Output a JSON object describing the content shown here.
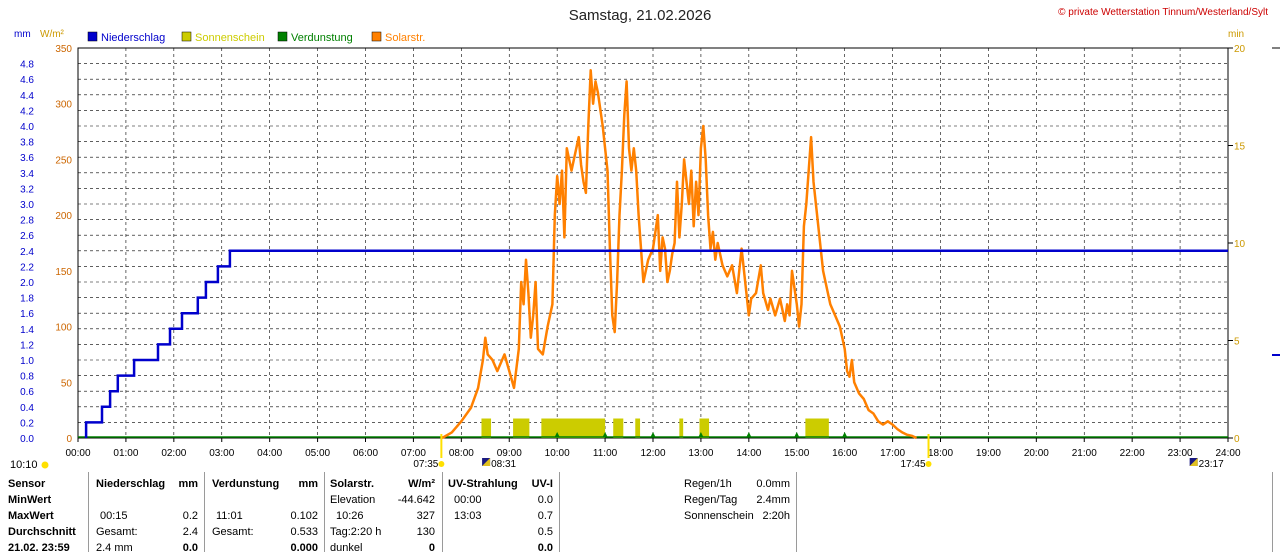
{
  "chart_data": {
    "type": "line",
    "title": "Samstag, 21.02.2026",
    "copyright": "© private Wetterstation Tinnum/Westerland/Sylt",
    "left_units": [
      "mm",
      "W/m²"
    ],
    "right_unit": "min",
    "legend": [
      {
        "name": "Niederschlag",
        "color": "#0000cc",
        "text_color": "#0000cc"
      },
      {
        "name": "Sonnenschein",
        "color": "#cccc00",
        "text_color": "#cccc00"
      },
      {
        "name": "Verdunstung",
        "color": "#008000",
        "text_color": "#008000"
      },
      {
        "name": "Solarstr.",
        "color": "#ff8000",
        "text_color": "#ff8000"
      }
    ],
    "x_ticks": [
      "00:00",
      "01:00",
      "02:00",
      "03:00",
      "04:00",
      "05:00",
      "06:00",
      "07:00",
      "08:00",
      "09:00",
      "10:00",
      "11:00",
      "12:00",
      "13:00",
      "14:00",
      "15:00",
      "16:00",
      "17:00",
      "18:00",
      "19:00",
      "20:00",
      "21:00",
      "22:00",
      "23:00",
      "24:00"
    ],
    "xlim_hours": [
      0,
      24
    ],
    "y_left_mm_ticks": [
      "0.0",
      "0.2",
      "0.4",
      "0.6",
      "0.8",
      "1.0",
      "1.2",
      "1.4",
      "1.6",
      "1.8",
      "2.0",
      "2.2",
      "2.4",
      "2.6",
      "2.8",
      "3.0",
      "3.2",
      "3.4",
      "3.6",
      "3.8",
      "4.0",
      "4.2",
      "4.4",
      "4.6",
      "4.8"
    ],
    "ylim_mm": [
      0,
      5.0
    ],
    "y_left_wm2_ticks": [
      "0",
      "50",
      "100",
      "150",
      "200",
      "250",
      "300",
      "350"
    ],
    "ylim_wm2": [
      0,
      350
    ],
    "y_right_min_ticks": [
      "0",
      "5",
      "10",
      "15",
      "20"
    ],
    "ylim_min": [
      0,
      20
    ],
    "grid": true,
    "sun_markers": [
      {
        "label": "07:35",
        "hour": 7.5833
      },
      {
        "label": "17:45",
        "hour": 17.75
      }
    ],
    "moon_markers": [
      {
        "label": "08:31",
        "hour": 8.5167
      },
      {
        "label": "23:17",
        "hour": 23.2833
      }
    ],
    "corner_time": "10:10",
    "series": [
      {
        "name": "Niederschlag",
        "unit": "mm",
        "color": "#0000cc",
        "points": [
          [
            0.17,
            0
          ],
          [
            0.17,
            0.2
          ],
          [
            0.5,
            0.2
          ],
          [
            0.5,
            0.4
          ],
          [
            0.67,
            0.4
          ],
          [
            0.67,
            0.6
          ],
          [
            0.83,
            0.6
          ],
          [
            0.83,
            0.8
          ],
          [
            1.17,
            0.8
          ],
          [
            1.17,
            1.0
          ],
          [
            1.67,
            1.0
          ],
          [
            1.67,
            1.2
          ],
          [
            1.92,
            1.2
          ],
          [
            1.92,
            1.4
          ],
          [
            2.17,
            1.4
          ],
          [
            2.17,
            1.6
          ],
          [
            2.5,
            1.6
          ],
          [
            2.5,
            1.8
          ],
          [
            2.67,
            1.8
          ],
          [
            2.67,
            2.0
          ],
          [
            2.92,
            2.0
          ],
          [
            2.92,
            2.2
          ],
          [
            3.17,
            2.2
          ],
          [
            3.17,
            2.4
          ],
          [
            24,
            2.4
          ]
        ]
      },
      {
        "name": "Solarstr.",
        "unit": "W/m²",
        "color": "#ff8000",
        "points": [
          [
            7.6,
            0
          ],
          [
            7.8,
            5
          ],
          [
            8.0,
            15
          ],
          [
            8.2,
            27
          ],
          [
            8.35,
            45
          ],
          [
            8.45,
            70
          ],
          [
            8.5,
            90
          ],
          [
            8.55,
            75
          ],
          [
            8.65,
            70
          ],
          [
            8.75,
            60
          ],
          [
            8.9,
            75
          ],
          [
            9.0,
            60
          ],
          [
            9.1,
            45
          ],
          [
            9.2,
            80
          ],
          [
            9.25,
            140
          ],
          [
            9.3,
            120
          ],
          [
            9.35,
            160
          ],
          [
            9.4,
            130
          ],
          [
            9.45,
            90
          ],
          [
            9.5,
            110
          ],
          [
            9.55,
            140
          ],
          [
            9.6,
            80
          ],
          [
            9.7,
            75
          ],
          [
            9.8,
            100
          ],
          [
            9.9,
            120
          ],
          [
            9.95,
            200
          ],
          [
            10.0,
            235
          ],
          [
            10.05,
            210
          ],
          [
            10.1,
            240
          ],
          [
            10.15,
            180
          ],
          [
            10.2,
            260
          ],
          [
            10.3,
            240
          ],
          [
            10.35,
            250
          ],
          [
            10.45,
            270
          ],
          [
            10.5,
            245
          ],
          [
            10.55,
            230
          ],
          [
            10.6,
            220
          ],
          [
            10.65,
            280
          ],
          [
            10.7,
            330
          ],
          [
            10.75,
            300
          ],
          [
            10.8,
            320
          ],
          [
            10.85,
            310
          ],
          [
            10.95,
            280
          ],
          [
            11.0,
            260
          ],
          [
            11.05,
            240
          ],
          [
            11.1,
            170
          ],
          [
            11.15,
            110
          ],
          [
            11.2,
            95
          ],
          [
            11.25,
            140
          ],
          [
            11.3,
            200
          ],
          [
            11.35,
            240
          ],
          [
            11.4,
            290
          ],
          [
            11.45,
            320
          ],
          [
            11.5,
            260
          ],
          [
            11.55,
            240
          ],
          [
            11.6,
            260
          ],
          [
            11.65,
            240
          ],
          [
            11.7,
            200
          ],
          [
            11.75,
            170
          ],
          [
            11.8,
            140
          ],
          [
            11.9,
            160
          ],
          [
            12.0,
            170
          ],
          [
            12.1,
            200
          ],
          [
            12.15,
            150
          ],
          [
            12.2,
            180
          ],
          [
            12.25,
            170
          ],
          [
            12.3,
            140
          ],
          [
            12.35,
            150
          ],
          [
            12.4,
            165
          ],
          [
            12.45,
            175
          ],
          [
            12.5,
            230
          ],
          [
            12.55,
            180
          ],
          [
            12.6,
            210
          ],
          [
            12.65,
            250
          ],
          [
            12.7,
            230
          ],
          [
            12.75,
            210
          ],
          [
            12.8,
            240
          ],
          [
            12.85,
            190
          ],
          [
            12.9,
            230
          ],
          [
            12.95,
            200
          ],
          [
            13.0,
            260
          ],
          [
            13.05,
            280
          ],
          [
            13.1,
            250
          ],
          [
            13.15,
            200
          ],
          [
            13.2,
            170
          ],
          [
            13.25,
            185
          ],
          [
            13.3,
            160
          ],
          [
            13.35,
            175
          ],
          [
            13.45,
            155
          ],
          [
            13.55,
            145
          ],
          [
            13.65,
            155
          ],
          [
            13.75,
            130
          ],
          [
            13.85,
            170
          ],
          [
            13.95,
            130
          ],
          [
            14.0,
            110
          ],
          [
            14.05,
            125
          ],
          [
            14.15,
            130
          ],
          [
            14.25,
            155
          ],
          [
            14.3,
            130
          ],
          [
            14.4,
            115
          ],
          [
            14.45,
            125
          ],
          [
            14.55,
            110
          ],
          [
            14.65,
            125
          ],
          [
            14.75,
            105
          ],
          [
            14.8,
            120
          ],
          [
            14.85,
            110
          ],
          [
            14.9,
            150
          ],
          [
            15.0,
            120
          ],
          [
            15.05,
            100
          ],
          [
            15.1,
            120
          ],
          [
            15.15,
            190
          ],
          [
            15.2,
            210
          ],
          [
            15.3,
            270
          ],
          [
            15.35,
            230
          ],
          [
            15.4,
            210
          ],
          [
            15.45,
            190
          ],
          [
            15.5,
            170
          ],
          [
            15.55,
            150
          ],
          [
            15.6,
            140
          ],
          [
            15.65,
            130
          ],
          [
            15.7,
            120
          ],
          [
            15.8,
            110
          ],
          [
            15.9,
            100
          ],
          [
            16.0,
            80
          ],
          [
            16.05,
            60
          ],
          [
            16.1,
            55
          ],
          [
            16.15,
            70
          ],
          [
            16.2,
            50
          ],
          [
            16.3,
            40
          ],
          [
            16.4,
            35
          ],
          [
            16.5,
            25
          ],
          [
            16.6,
            22
          ],
          [
            16.7,
            15
          ],
          [
            16.8,
            12
          ],
          [
            16.9,
            15
          ],
          [
            17.0,
            12
          ],
          [
            17.1,
            8
          ],
          [
            17.2,
            5
          ],
          [
            17.3,
            3
          ],
          [
            17.4,
            2
          ],
          [
            17.5,
            0
          ]
        ]
      },
      {
        "name": "Sonnenschein",
        "unit": "min",
        "color": "#cccc00",
        "bars": [
          {
            "start": 8.42,
            "end": 8.62,
            "value": 1
          },
          {
            "start": 9.08,
            "end": 9.42,
            "value": 1
          },
          {
            "start": 9.67,
            "end": 11.0,
            "value": 1
          },
          {
            "start": 11.17,
            "end": 11.38,
            "value": 1
          },
          {
            "start": 11.63,
            "end": 11.73,
            "value": 1
          },
          {
            "start": 12.55,
            "end": 12.63,
            "value": 1
          },
          {
            "start": 12.97,
            "end": 13.17,
            "value": 1
          },
          {
            "start": 15.18,
            "end": 15.67,
            "value": 1
          }
        ]
      },
      {
        "name": "Verdunstung",
        "unit": "mm",
        "color": "#008000",
        "markers": [
          10.0,
          11.0,
          12.0,
          13.0,
          14.0,
          15.0,
          16.0
        ]
      }
    ]
  },
  "stats": {
    "rows": [
      {
        "label": "Sensor",
        "bold": true
      },
      {
        "label": "MinWert",
        "bold": true
      },
      {
        "label": "MaxWert",
        "bold": true
      },
      {
        "label": "Durchschnitt",
        "bold": true
      },
      {
        "label": "21.02. 23:59",
        "bold": true
      }
    ],
    "niederschlag": {
      "header": "Niederschlag",
      "unit": "mm",
      "cells": [
        [
          "",
          ""
        ],
        [
          "00:15",
          "0.2"
        ],
        [
          "Gesamt:",
          "2.4"
        ],
        [
          "2.4 mm",
          "0.0"
        ]
      ]
    },
    "verdunstung": {
      "header": "Verdunstung",
      "unit": "mm",
      "cells": [
        [
          "",
          ""
        ],
        [
          "11:01",
          "0.102"
        ],
        [
          "Gesamt:",
          "0.533"
        ],
        [
          "",
          "0.000"
        ]
      ]
    },
    "solar": {
      "header": "Solarstr.",
      "unit": "W/m²",
      "cells": [
        [
          "Elevation",
          "-44.642"
        ],
        [
          "10:26",
          "327"
        ],
        [
          "Tag:2:20 h",
          "130"
        ],
        [
          "dunkel",
          "0"
        ]
      ]
    },
    "uv": {
      "header": "UV-Strahlung",
      "unit": "UV-I",
      "cells": [
        [
          "00:00",
          "0.0"
        ],
        [
          "13:03",
          "0.7"
        ],
        [
          "",
          "0.5"
        ],
        [
          "",
          "0.0"
        ]
      ]
    },
    "summary": [
      {
        "label": "Regen/1h",
        "value": "0.0mm"
      },
      {
        "label": "Regen/Tag",
        "value": "2.4mm"
      },
      {
        "label": "Sonnenschein",
        "value": "2:20h"
      }
    ]
  }
}
